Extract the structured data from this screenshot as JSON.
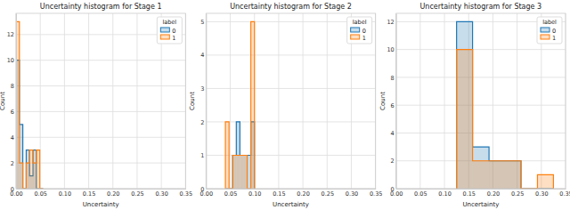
{
  "chart_data": [
    {
      "type": "histogram",
      "title": "Uncertainty histogram for Stage 1",
      "x_label": "Uncertainty",
      "y_label": "Count",
      "legend_title": "label",
      "legend": "upper right",
      "grid": true,
      "bins": [
        0,
        0.007,
        0.014,
        0.021,
        0.028,
        0.035,
        0.042,
        0.049,
        0.056
      ],
      "series": [
        {
          "name": "0",
          "color": "#1f77b4",
          "values": [
            10,
            5,
            0,
            3,
            1,
            3,
            0,
            0
          ]
        },
        {
          "name": "1",
          "color": "#ff7f0e",
          "values": [
            13,
            2,
            0,
            2,
            3,
            2,
            3,
            0
          ]
        }
      ],
      "xlim": [
        0,
        0.35
      ],
      "xticks": [
        {
          "value": 0,
          "label": "0.00"
        },
        {
          "value": 0.05,
          "label": "0.05"
        },
        {
          "value": 0.1,
          "label": "0.10"
        },
        {
          "value": 0.15,
          "label": "0.15"
        },
        {
          "value": 0.2,
          "label": "0.20"
        },
        {
          "value": 0.25,
          "label": "0.25"
        },
        {
          "value": 0.3,
          "label": "0.30"
        },
        {
          "value": 0.35,
          "label": "0.35"
        }
      ],
      "ylim": [
        0,
        13.65
      ],
      "yticks": [
        0,
        2,
        4,
        6,
        8,
        10,
        12
      ]
    },
    {
      "type": "histogram",
      "title": "Uncertainty histogram for Stage 2",
      "x_label": "Uncertainty",
      "y_label": "Count",
      "legend_title": "label",
      "legend": "upper right",
      "grid": true,
      "bins": [
        0.04,
        0.0475,
        0.055,
        0.0625,
        0.07,
        0.0775,
        0.085,
        0.0925,
        0.1
      ],
      "series": [
        {
          "name": "0",
          "color": "#1f77b4",
          "values": [
            0,
            0,
            1,
            2,
            1,
            1,
            1,
            2
          ]
        },
        {
          "name": "1",
          "color": "#ff7f0e",
          "values": [
            2,
            0,
            1,
            1,
            1,
            1,
            0,
            5
          ]
        }
      ],
      "xlim": [
        0,
        0.35
      ],
      "xticks": [
        {
          "value": 0,
          "label": "0.00"
        },
        {
          "value": 0.05,
          "label": "0.05"
        },
        {
          "value": 0.1,
          "label": "0.10"
        },
        {
          "value": 0.15,
          "label": "0.15"
        },
        {
          "value": 0.2,
          "label": "0.20"
        },
        {
          "value": 0.25,
          "label": "0.25"
        },
        {
          "value": 0.3,
          "label": "0.30"
        },
        {
          "value": 0.35,
          "label": "0.35"
        }
      ],
      "ylim": [
        0,
        5.25
      ],
      "yticks": [
        0,
        1,
        2,
        3,
        4,
        5
      ]
    },
    {
      "type": "histogram",
      "title": "Uncertainty histogram for Stage 3",
      "x_label": "Uncertainty",
      "y_label": "Count",
      "legend_title": "label",
      "legend": "upper right",
      "grid": true,
      "bins": [
        0.125,
        0.158,
        0.192,
        0.225,
        0.258,
        0.292,
        0.325
      ],
      "series": [
        {
          "name": "0",
          "color": "#1f77b4",
          "values": [
            12,
            3,
            2,
            2,
            0,
            0
          ]
        },
        {
          "name": "1",
          "color": "#ff7f0e",
          "values": [
            10,
            2,
            2,
            2,
            0,
            1
          ]
        }
      ],
      "xlim": [
        0,
        0.35
      ],
      "xticks": [
        {
          "value": 0,
          "label": "0.00"
        },
        {
          "value": 0.05,
          "label": "0.05"
        },
        {
          "value": 0.1,
          "label": "0.10"
        },
        {
          "value": 0.15,
          "label": "0.15"
        },
        {
          "value": 0.2,
          "label": "0.20"
        },
        {
          "value": 0.25,
          "label": "0.25"
        },
        {
          "value": 0.3,
          "label": "0.30"
        },
        {
          "value": 0.35,
          "label": "0.35"
        }
      ],
      "ylim": [
        0,
        12.6
      ],
      "yticks": [
        0,
        2,
        4,
        6,
        8,
        10,
        12
      ]
    }
  ]
}
